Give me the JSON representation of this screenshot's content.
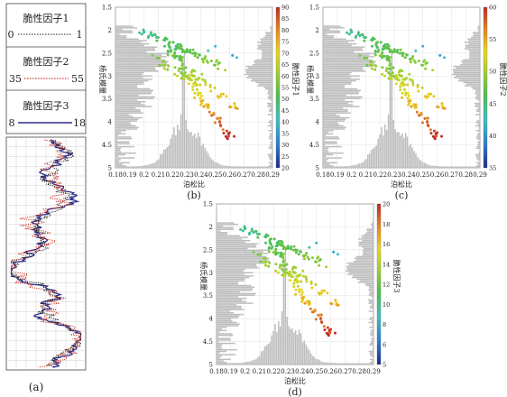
{
  "panel_a": {
    "label": "(a)",
    "tracks": [
      {
        "name": "脆性因子1",
        "min": "0",
        "max": "1",
        "color": "#222222",
        "dash": "dotted"
      },
      {
        "name": "脆性因子2",
        "min": "35",
        "max": "55",
        "color": "#d0392b",
        "dash": "dotted"
      },
      {
        "name": "脆性因子3",
        "min": "8",
        "max": "18",
        "color": "#2d2d8a",
        "dash": "solid"
      }
    ]
  },
  "chart_data": [
    {
      "type": "scatter",
      "label": "(b)",
      "xlabel": "泊松比",
      "ylabel": "杨氏模量",
      "colorbar_label": "脆性因子1",
      "xlim": [
        0.18,
        0.29
      ],
      "ylim": [
        5,
        1.5
      ],
      "xticks": [
        "0.18",
        "0.19",
        "0.2",
        "0.21",
        "0.22",
        "0.23",
        "0.24",
        "0.25",
        "0.26",
        "0.27",
        "0.28",
        "0.29"
      ],
      "yticks": [
        "1.5",
        "2",
        "2.5",
        "3",
        "3.5",
        "4",
        "4.5",
        "5"
      ],
      "colorbar_ticks": [
        "90",
        "85",
        "80",
        "75",
        "70",
        "65",
        "60",
        "55",
        "50",
        "45",
        "40",
        "35",
        "30",
        "25",
        "20"
      ],
      "colorbar_range": [
        20,
        90
      ],
      "grid": true
    },
    {
      "type": "scatter",
      "label": "(c)",
      "xlabel": "泊松比",
      "ylabel": "杨氏模量",
      "colorbar_label": "脆性因子2",
      "xlim": [
        0.18,
        0.29
      ],
      "ylim": [
        5,
        1.5
      ],
      "xticks": [
        "0.18",
        "0.19",
        "0.2",
        "0.21",
        "0.22",
        "0.23",
        "0.24",
        "0.25",
        "0.26",
        "0.27",
        "0.28",
        "0.29"
      ],
      "yticks": [
        "1.5",
        "2",
        "2.5",
        "3",
        "3.5",
        "4",
        "4.5",
        "5"
      ],
      "colorbar_ticks": [
        "60",
        "55",
        "50",
        "45",
        "40",
        "35"
      ],
      "colorbar_range": [
        35,
        60
      ],
      "grid": true
    },
    {
      "type": "scatter",
      "label": "(d)",
      "xlabel": "泊松比",
      "ylabel": "杨氏模量",
      "colorbar_label": "脆性因子3",
      "xlim": [
        0.18,
        0.29
      ],
      "ylim": [
        5,
        1.5
      ],
      "xticks": [
        "0.18",
        "0.19",
        "0.2",
        "0.21",
        "0.22",
        "0.23",
        "0.24",
        "0.25",
        "0.26",
        "0.27",
        "0.28",
        "0.29"
      ],
      "yticks": [
        "1.5",
        "2",
        "2.5",
        "3",
        "3.5",
        "4",
        "4.5",
        "5"
      ],
      "colorbar_ticks": [
        "20",
        "18",
        "16",
        "14",
        "12",
        "10",
        "8",
        "6",
        "5"
      ],
      "colorbar_range": [
        5,
        20
      ],
      "grid": true
    }
  ]
}
